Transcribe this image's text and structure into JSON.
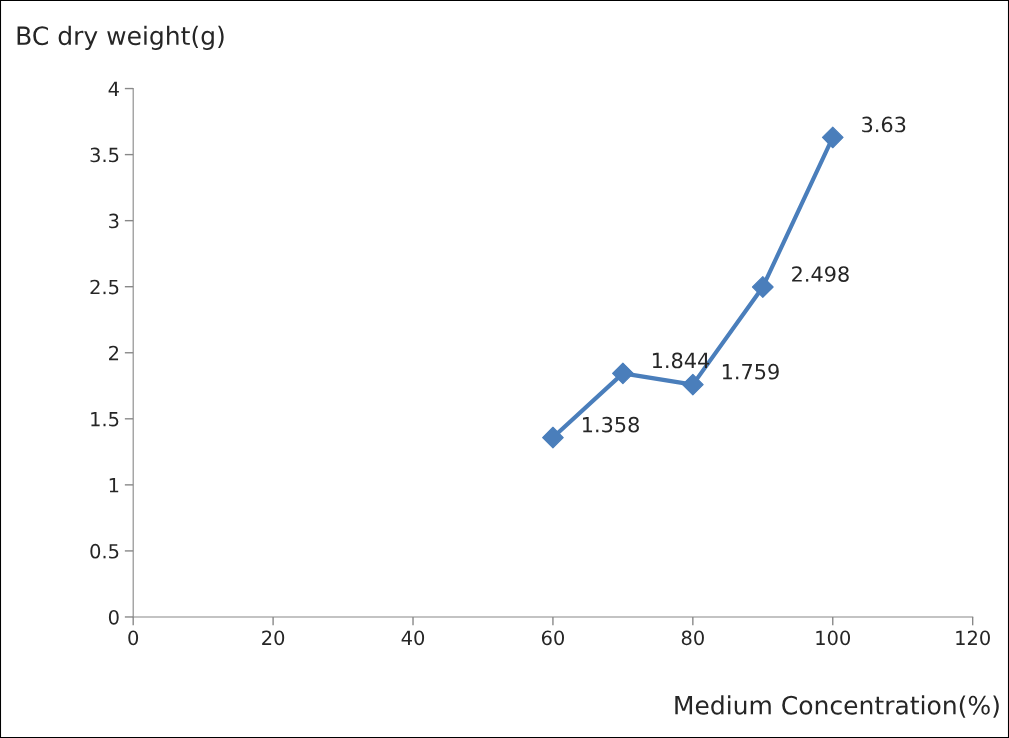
{
  "chart_data": {
    "type": "line",
    "xlabel": "Medium Concentration(%)",
    "ylabel": "BC dry weight(g)",
    "x": [
      60,
      70,
      80,
      90,
      100
    ],
    "series": [
      {
        "color": "#4a7ebb",
        "values": [
          1.358,
          1.844,
          1.759,
          2.498,
          3.63
        ]
      }
    ],
    "xlim": [
      0,
      120
    ],
    "xticks": [
      0,
      20,
      40,
      60,
      80,
      100,
      120
    ],
    "ylim": [
      0,
      4
    ],
    "yticks": [
      0,
      0.5,
      1,
      1.5,
      2,
      2.5,
      3,
      3.5,
      4
    ],
    "data_labels": true,
    "grid": false,
    "legend": false,
    "marker": "diamond",
    "line_style": "solid"
  }
}
